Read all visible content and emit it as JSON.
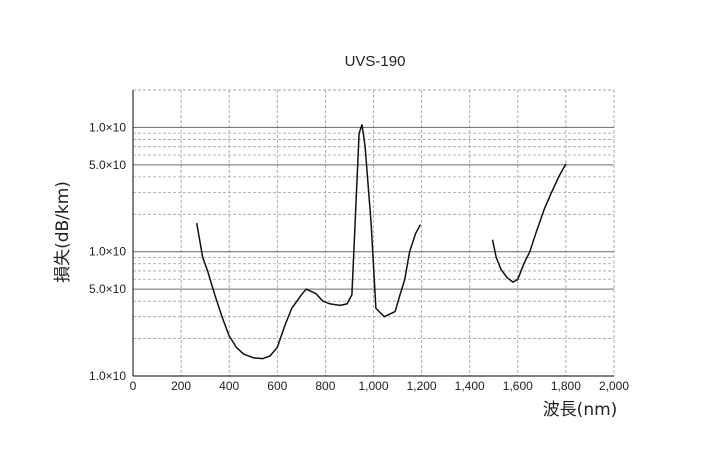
{
  "chart_data": {
    "type": "line",
    "title": "UVS-190",
    "xlabel": "波長(nm)",
    "ylabel": "損失(dB/km)",
    "x_ticks": [
      {
        "value": 0,
        "label": "0"
      },
      {
        "value": 200,
        "label": "200"
      },
      {
        "value": 400,
        "label": "400"
      },
      {
        "value": 600,
        "label": "600"
      },
      {
        "value": 800,
        "label": "800"
      },
      {
        "value": 1000,
        "label": "1,000"
      },
      {
        "value": 1200,
        "label": "1,200"
      },
      {
        "value": 1400,
        "label": "1,400"
      },
      {
        "value": 1600,
        "label": "1,600"
      },
      {
        "value": 1800,
        "label": "1,800"
      },
      {
        "value": 2000,
        "label": "2,000"
      }
    ],
    "y_ticks": [
      {
        "value": 10,
        "label": "1.0×10"
      },
      {
        "value": 50,
        "label": "5.0×10"
      },
      {
        "value": 100,
        "label": "1.0×10"
      },
      {
        "value": 500,
        "label": "5.0×10"
      },
      {
        "value": 1000,
        "label": "1.0×10"
      }
    ],
    "xlim": [
      0,
      2000
    ],
    "ylim": [
      10,
      2000
    ],
    "y_scale": "log",
    "grid": true,
    "line_color": "#111111",
    "series": [
      {
        "points": [
          [
            265,
            170
          ],
          [
            290,
            90
          ],
          [
            310,
            70
          ],
          [
            340,
            45
          ],
          [
            370,
            30
          ],
          [
            400,
            21
          ],
          [
            430,
            17
          ],
          [
            460,
            15
          ],
          [
            500,
            14
          ],
          [
            540,
            13.8
          ],
          [
            570,
            14.5
          ],
          [
            600,
            17
          ],
          [
            630,
            25
          ],
          [
            660,
            35
          ],
          [
            700,
            45
          ],
          [
            720,
            50
          ],
          [
            760,
            46
          ],
          [
            790,
            40
          ],
          [
            820,
            38
          ],
          [
            860,
            37
          ],
          [
            890,
            38
          ],
          [
            910,
            45
          ],
          [
            925,
            200
          ],
          [
            940,
            900
          ],
          [
            952,
            1050
          ],
          [
            965,
            700
          ],
          [
            990,
            170
          ],
          [
            1010,
            35
          ],
          [
            1045,
            30
          ],
          [
            1060,
            31
          ],
          [
            1090,
            33
          ],
          [
            1110,
            45
          ],
          [
            1130,
            60
          ],
          [
            1150,
            100
          ],
          [
            1175,
            140
          ],
          [
            1195,
            165
          ]
        ]
      },
      {
        "points": [
          [
            1495,
            125
          ],
          [
            1510,
            90
          ],
          [
            1530,
            72
          ],
          [
            1555,
            62
          ],
          [
            1580,
            57
          ],
          [
            1600,
            60
          ],
          [
            1625,
            80
          ],
          [
            1650,
            100
          ],
          [
            1680,
            150
          ],
          [
            1710,
            220
          ],
          [
            1740,
            300
          ],
          [
            1770,
            400
          ],
          [
            1800,
            510
          ]
        ]
      }
    ]
  }
}
